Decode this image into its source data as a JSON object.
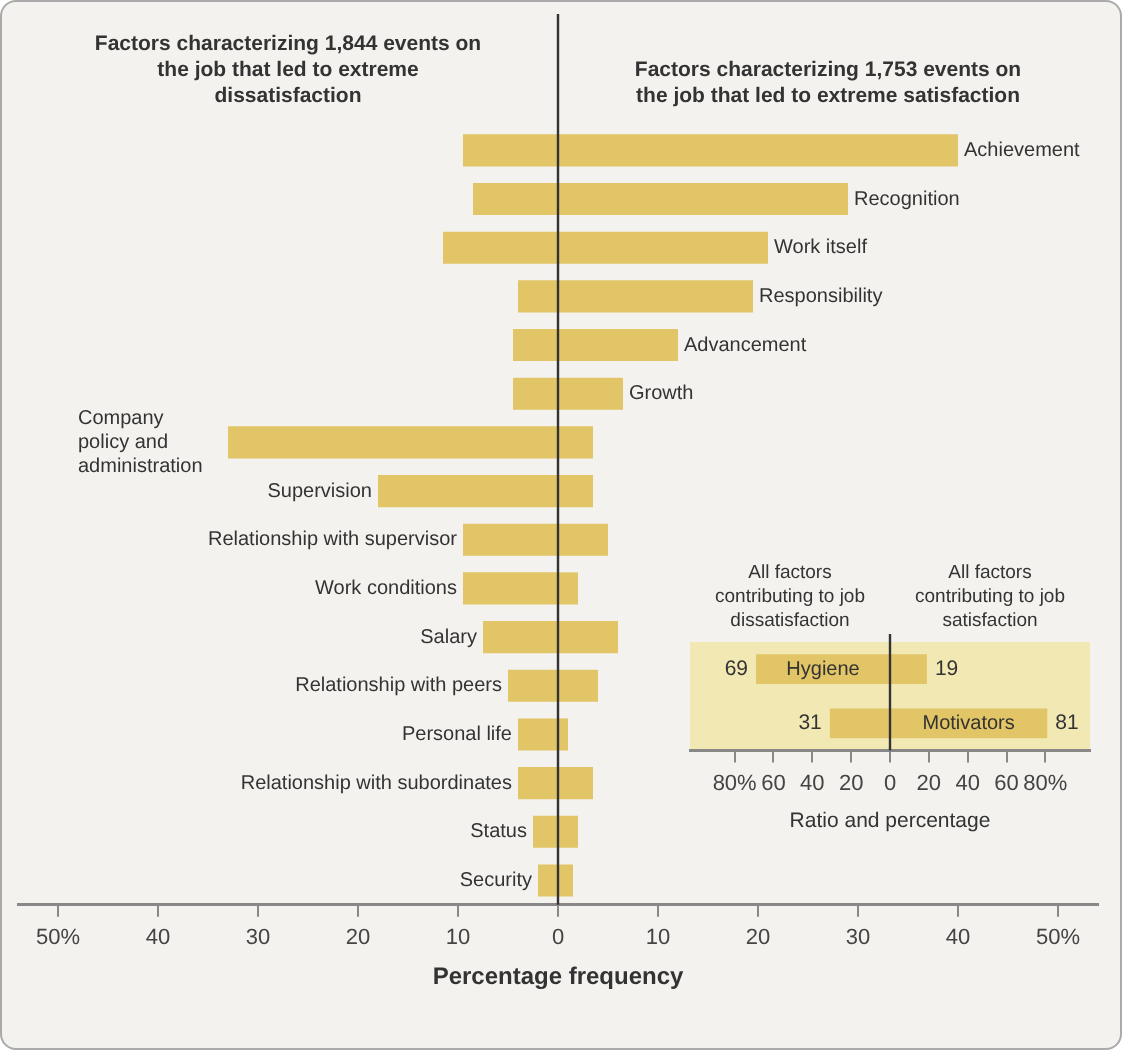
{
  "chart_data": [
    {
      "type": "bar",
      "orientation": "horizontal",
      "stacked": true,
      "xlabel": "Percentage frequency",
      "categories": [
        "Achievement",
        "Recognition",
        "Work itself",
        "Responsibility",
        "Advancement",
        "Growth",
        "Company policy and administration",
        "Supervision",
        "Relationship with supervisor",
        "Work conditions",
        "Salary",
        "Relationship with peers",
        "Personal life",
        "Relationship with subordinates",
        "Status",
        "Security"
      ],
      "series": [
        {
          "name": "Factors characterizing 1,844 events on the job that led to extreme dissatisfaction",
          "color": "#e2c566",
          "values": [
            -9.5,
            -8.5,
            -11.5,
            -4,
            -4.5,
            -4.5,
            -33,
            -18,
            -9.5,
            -9.5,
            -7.5,
            -5,
            -4,
            -4,
            -2.5,
            -2
          ]
        },
        {
          "name": "Factors characterizing 1,753 events on the job that led to extreme satisfaction",
          "color": "#e2c566",
          "values": [
            40,
            29,
            21,
            19.5,
            12,
            6.5,
            3.5,
            3.5,
            5,
            2,
            6,
            4,
            1,
            3.5,
            2,
            1.5
          ]
        }
      ],
      "xlim": [
        -54,
        54
      ],
      "xticks": [
        {
          "value": -50,
          "label": "50%"
        },
        {
          "value": -40,
          "label": "40"
        },
        {
          "value": -30,
          "label": "30"
        },
        {
          "value": -20,
          "label": "20"
        },
        {
          "value": -10,
          "label": "10"
        },
        0,
        10,
        20,
        30,
        40,
        {
          "value": 50,
          "label": "50%"
        }
      ],
      "ref_lines": [
        {
          "axis": "x",
          "value": 0
        }
      ]
    },
    {
      "type": "bar",
      "orientation": "horizontal",
      "xlabel": "Ratio and percentage",
      "categories": [
        "Hygiene",
        "Motivators"
      ],
      "series": [
        {
          "name": "All factors contributing to job dissatisfaction",
          "color": "#e2c566",
          "values": [
            69,
            31
          ],
          "base": [
            -69,
            -31
          ],
          "value_labels": [
            "69",
            "31"
          ]
        },
        {
          "name": "All factors contributing to job satisfaction",
          "color": "#e2c566",
          "values": [
            19,
            81
          ],
          "value_labels": [
            "19",
            "81"
          ]
        }
      ],
      "xlim": [
        -103,
        103
      ],
      "xticks": [
        {
          "value": -80,
          "label": "80%"
        },
        {
          "value": -60,
          "label": "60"
        },
        {
          "value": -40,
          "label": "40"
        },
        {
          "value": -20,
          "label": "20"
        },
        0,
        20,
        40,
        60,
        {
          "value": 80,
          "label": "80%"
        }
      ],
      "ref_lines": [
        {
          "axis": "x",
          "value": 0
        }
      ]
    }
  ]
}
